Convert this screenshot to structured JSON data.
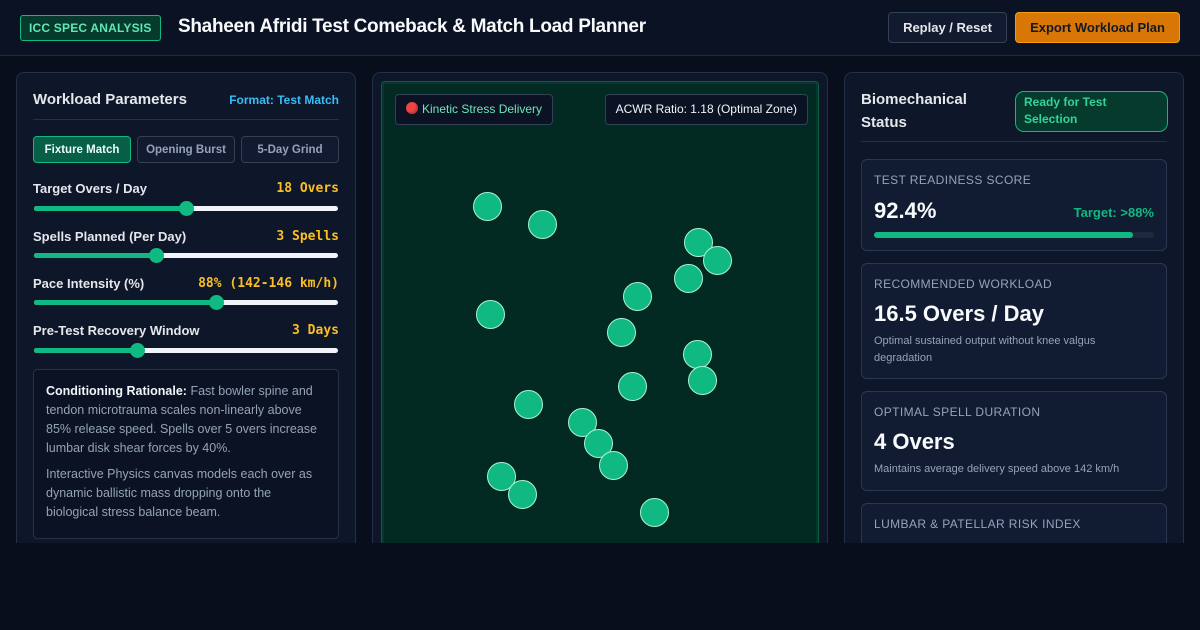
{
  "header": {
    "tag": "ICC SPEC ANALYSIS",
    "title": "Shaheen Afridi Test Comeback & Match Load Planner",
    "replay_label": "Replay / Reset",
    "export_label": "Export Workload Plan",
    "accent_color": "#d97706"
  },
  "params": {
    "title": "Workload Parameters",
    "format": "Format: Test Match",
    "modes": [
      "Fixture Match",
      "Opening Burst",
      "5-Day Grind"
    ],
    "active_mode": "Fixture Match",
    "sliders": [
      {
        "label": "Target Overs / Day",
        "value": "18 Overs",
        "level": 0.5
      },
      {
        "label": "Spells Planned (Per Day)",
        "value": "3 Spells",
        "level": 0.4
      },
      {
        "label": "Pace Intensity (%)",
        "value": "88% (142-146 km/h)",
        "level": 0.6
      },
      {
        "label": "Pre-Test Recovery Window",
        "value": "3 Days",
        "level": 0.34
      }
    ],
    "rationale_title": "Conditioning Rationale:",
    "rationale_text": "Fast bowler spine and tendon microtrauma scales non-linearly above 85% release speed. Spells over 5 overs increase lumbar disk shear forces by 40%.",
    "rationale_text2": "Interactive Physics canvas models each over as dynamic ballistic mass dropping onto the biological stress balance beam."
  },
  "canvas": {
    "badge_left": "Kinetic Stress Delivery",
    "badge_right": "ACWR Ratio: 1.18 (Optimal Zone)"
  },
  "status": {
    "title": "Biomechanical Status",
    "badge": "Ready for Test Selection",
    "readiness_label": "TEST READINESS SCORE",
    "readiness_value": "92.4%",
    "readiness_target": "Target: >88%",
    "readiness_level": 0.924,
    "workload_label": "RECOMMENDED WORKLOAD",
    "workload_value": "16.5 Overs / Day",
    "workload_desc": "Optimal sustained output without knee valgus degradation",
    "spell_label": "OPTIMAL SPELL DURATION",
    "spell_value": "4 Overs",
    "spell_desc": "Maintains average delivery speed above 142 km/h",
    "risk_label": "LUMBAR & PATELLAR RISK INDEX"
  }
}
